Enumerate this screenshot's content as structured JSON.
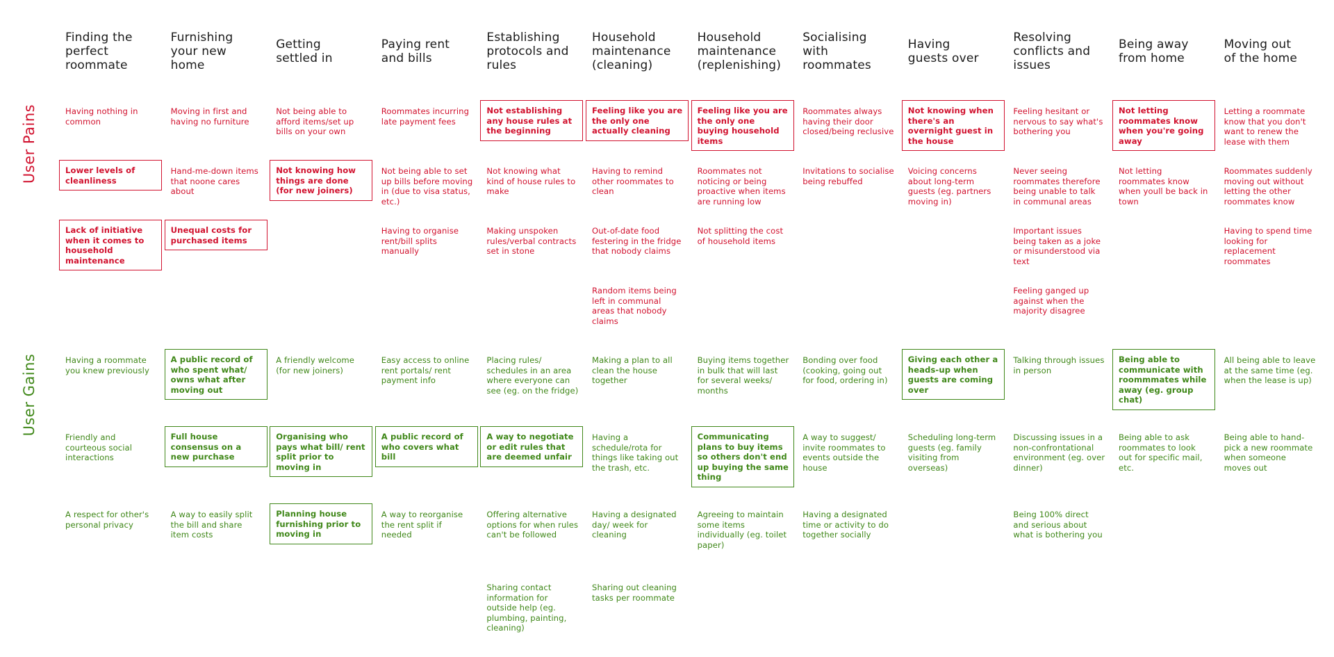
{
  "sections": {
    "pains": "User Pains",
    "gains": "User Gains"
  },
  "columns": [
    "Finding the\nperfect\nroommate",
    "Furnishing\nyour new\nhome",
    "Getting\nsettled in",
    "Paying rent\nand bills",
    "Establishing\nprotocols and\nrules",
    "Household\nmaintenance\n(cleaning)",
    "Household\nmaintenance\n(replenishing)",
    "Socialising\nwith\nroommates",
    "Having\nguests over",
    "Resolving\nconflicts and\nissues",
    "Being away\nfrom home",
    "Moving out\nof the home"
  ],
  "pains": [
    [
      {
        "text": "Having nothing in common",
        "hl": false
      },
      {
        "text": "Lower levels of cleanliness",
        "hl": true
      },
      {
        "text": "Lack of initiative when it comes to household maintenance",
        "hl": true
      }
    ],
    [
      {
        "text": "Moving in first and having no furniture",
        "hl": false
      },
      {
        "text": "Hand-me-down items that noone cares about",
        "hl": false
      },
      {
        "text": "Unequal costs for purchased items",
        "hl": true
      }
    ],
    [
      {
        "text": "Not being able to afford items/set up bills on your own",
        "hl": false
      },
      {
        "text": "Not knowing how things are done (for new joiners)",
        "hl": true
      }
    ],
    [
      {
        "text": "Roommates incurring late payment fees",
        "hl": false
      },
      {
        "text": "Not being able to set up bills before moving in (due to visa status, etc.)",
        "hl": false
      },
      {
        "text": "Having to organise rent/bill splits manually",
        "hl": false
      }
    ],
    [
      {
        "text": "Not establishing any house rules at the beginning",
        "hl": true
      },
      {
        "text": "Not knowing what kind of house rules to make",
        "hl": false
      },
      {
        "text": "Making unspoken rules/verbal contracts set in stone",
        "hl": false
      }
    ],
    [
      {
        "text": "Feeling like you are the only one actually cleaning",
        "hl": true
      },
      {
        "text": "Having to remind other roommates to clean",
        "hl": false
      },
      {
        "text": "Out-of-date food festering in the fridge that nobody claims",
        "hl": false
      },
      {
        "text": "Random items being left in communal areas that nobody claims",
        "hl": false
      }
    ],
    [
      {
        "text": "Feeling like you are the only one buying household items",
        "hl": true
      },
      {
        "text": "Roommates not noticing or being proactive when items are running low",
        "hl": false
      },
      {
        "text": "Not splitting the cost of household items",
        "hl": false
      }
    ],
    [
      {
        "text": "Roommates always having their door closed/being reclusive",
        "hl": false
      },
      {
        "text": "Invitations to socialise being rebuffed",
        "hl": false
      }
    ],
    [
      {
        "text": "Not knowing when there's an overnight guest in the house",
        "hl": true
      },
      {
        "text": "Voicing concerns about long-term guests (eg. partners moving in)",
        "hl": false
      }
    ],
    [
      {
        "text": "Feeling hesitant or nervous to say what's bothering you",
        "hl": false
      },
      {
        "text": "Never seeing roommates therefore being unable to talk in communal areas",
        "hl": false
      },
      {
        "text": "Important issues being taken as a joke or misunderstood via text",
        "hl": false
      },
      {
        "text": "Feeling ganged up against when the majority disagree",
        "hl": false
      }
    ],
    [
      {
        "text": "Not letting roommates know when you're going away",
        "hl": true
      },
      {
        "text": "Not letting roommates know when youll be back in town",
        "hl": false
      }
    ],
    [
      {
        "text": "Letting a roommate know that you don't want to renew the lease with them",
        "hl": false
      },
      {
        "text": "Roommates suddenly moving out without letting the other roommates know",
        "hl": false
      },
      {
        "text": "Having to spend time looking for replacement roommates",
        "hl": false
      }
    ]
  ],
  "gains": [
    [
      {
        "text": "Having a roommate you knew previously",
        "hl": false
      },
      {
        "text": "Friendly and courteous social interactions",
        "hl": false
      },
      {
        "text": "A respect for other's personal privacy",
        "hl": false
      }
    ],
    [
      {
        "text": "A public record of who spent what/ owns what after moving out",
        "hl": true
      },
      {
        "text": "Full house consensus on a new purchase",
        "hl": true
      },
      {
        "text": "A way to easily split the bill and share item costs",
        "hl": false
      }
    ],
    [
      {
        "text": "A friendly welcome (for new joiners)",
        "hl": false
      },
      {
        "text": "Organising who pays what bill/ rent split prior to moving in",
        "hl": true
      },
      {
        "text": "Planning house furnishing prior to moving in",
        "hl": true
      }
    ],
    [
      {
        "text": "Easy access to online rent portals/ rent payment info",
        "hl": false
      },
      {
        "text": "A public record of who covers what bill",
        "hl": true
      },
      {
        "text": "A way to reorganise the rent split if needed",
        "hl": false
      }
    ],
    [
      {
        "text": "Placing rules/ schedules in an area where everyone can see (eg. on the fridge)",
        "hl": false
      },
      {
        "text": "A way to negotiate or edit rules that are deemed unfair",
        "hl": true
      },
      {
        "text": "Offering alternative options for when rules can't be followed",
        "hl": false
      },
      {
        "text": "Sharing contact information for outside help (eg. plumbing, painting, cleaning)",
        "hl": false
      }
    ],
    [
      {
        "text": "Making a plan to all clean the house together",
        "hl": false
      },
      {
        "text": "Having a schedule/rota for things like taking out the trash, etc.",
        "hl": false
      },
      {
        "text": "Having a designated day/ week for cleaning",
        "hl": false
      },
      {
        "text": "Sharing out cleaning tasks per roommate",
        "hl": false
      }
    ],
    [
      {
        "text": "Buying items together in bulk that will last for several weeks/ months",
        "hl": false
      },
      {
        "text": "Communicating plans to buy items so others don't end up buying the same thing",
        "hl": true
      },
      {
        "text": "Agreeing to maintain some items individually (eg. toilet paper)",
        "hl": false
      }
    ],
    [
      {
        "text": "Bonding over food (cooking, going out for food, ordering in)",
        "hl": false
      },
      {
        "text": "A way to suggest/ invite roommates to events outside the house",
        "hl": false
      },
      {
        "text": "Having a designated time or activity to do together socially",
        "hl": false
      }
    ],
    [
      {
        "text": "Giving each other a heads-up when guests are coming over",
        "hl": true
      },
      {
        "text": "Scheduling long-term guests (eg. family visiting from overseas)",
        "hl": false
      }
    ],
    [
      {
        "text": "Talking through issues in person",
        "hl": false
      },
      {
        "text": "Discussing issues in a non-confrontational environment (eg. over dinner)",
        "hl": false
      },
      {
        "text": "Being 100% direct and serious about what is bothering you",
        "hl": false
      }
    ],
    [
      {
        "text": "Being able to communicate with roommmates while away (eg. group chat)",
        "hl": true
      },
      {
        "text": "Being able to ask roommates to look out for specific mail, etc.",
        "hl": false
      }
    ],
    [
      {
        "text": "All being able to leave at the same time (eg. when the lease is up)",
        "hl": false
      },
      {
        "text": "Being able to hand-pick a new roommate when someone moves out",
        "hl": false
      }
    ]
  ]
}
